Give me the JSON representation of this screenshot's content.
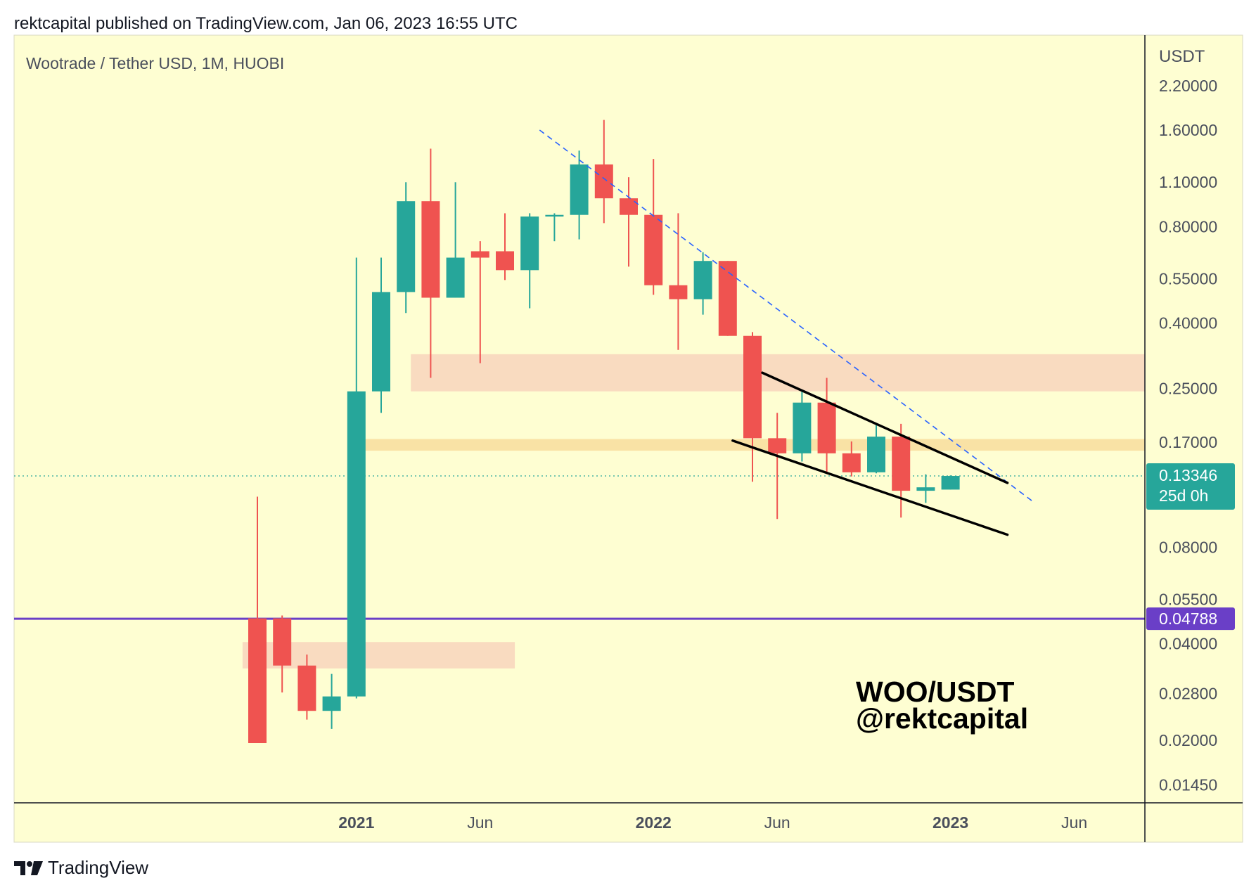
{
  "header": {
    "publisher_line": "rektcapital published on TradingView.com, Jan 06, 2023 16:55 UTC"
  },
  "footer": {
    "brand": "TradingView"
  },
  "colors": {
    "background": "#fefed2",
    "up": "#26a69a",
    "down": "#ef5350",
    "support_zone": "#f9dbc0",
    "support_line": "#f9e2a5",
    "horizontal_line": "#6a3fc7",
    "trend_dashed": "#2962ff",
    "wedge": "#000000"
  },
  "chart_data": {
    "type": "candlestick",
    "title": "Wootrade / Tether USD, 1M, HUOBI",
    "currency": "USDT",
    "scale": "log",
    "ylim": [
      0.0125,
      2.8
    ],
    "y_ticks": [
      "2.20000",
      "1.60000",
      "1.10000",
      "0.80000",
      "0.55000",
      "0.40000",
      "0.25000",
      "0.17000",
      "0.08000",
      "0.05500",
      "0.04000",
      "0.02800",
      "0.02000",
      "0.01450"
    ],
    "x_ticks": [
      {
        "label": "2021",
        "bold": true,
        "t": 4
      },
      {
        "label": "Jun",
        "bold": false,
        "t": 9
      },
      {
        "label": "2022",
        "bold": true,
        "t": 16
      },
      {
        "label": "Jun",
        "bold": false,
        "t": 21
      },
      {
        "label": "2023",
        "bold": true,
        "t": 28
      },
      {
        "label": "Jun",
        "bold": false,
        "t": 33
      }
    ],
    "candles": [
      {
        "date": "2020-09",
        "open": 0.048,
        "high": 0.115,
        "low": 0.0196,
        "close": 0.0196
      },
      {
        "date": "2020-10",
        "open": 0.048,
        "high": 0.049,
        "low": 0.0282,
        "close": 0.0342
      },
      {
        "date": "2020-11",
        "open": 0.0342,
        "high": 0.037,
        "low": 0.0232,
        "close": 0.0247
      },
      {
        "date": "2020-12",
        "open": 0.0247,
        "high": 0.0322,
        "low": 0.0217,
        "close": 0.0274
      },
      {
        "date": "2021-01",
        "open": 0.0274,
        "high": 0.64,
        "low": 0.027,
        "close": 0.245
      },
      {
        "date": "2021-02",
        "open": 0.245,
        "high": 0.64,
        "low": 0.21,
        "close": 0.5
      },
      {
        "date": "2021-03",
        "open": 0.5,
        "high": 1.1,
        "low": 0.43,
        "close": 0.96
      },
      {
        "date": "2021-04",
        "open": 0.96,
        "high": 1.4,
        "low": 0.27,
        "close": 0.48
      },
      {
        "date": "2021-05",
        "open": 0.48,
        "high": 1.1,
        "low": 0.48,
        "close": 0.64
      },
      {
        "date": "2021-06",
        "open": 0.67,
        "high": 0.72,
        "low": 0.3,
        "close": 0.64
      },
      {
        "date": "2021-07",
        "open": 0.67,
        "high": 0.88,
        "low": 0.545,
        "close": 0.585
      },
      {
        "date": "2021-08",
        "open": 0.585,
        "high": 0.88,
        "low": 0.445,
        "close": 0.86
      },
      {
        "date": "2021-09",
        "open": 0.86,
        "high": 0.88,
        "low": 0.72,
        "close": 0.87
      },
      {
        "date": "2021-10",
        "open": 0.87,
        "high": 1.38,
        "low": 0.73,
        "close": 1.25
      },
      {
        "date": "2021-11",
        "open": 1.25,
        "high": 1.72,
        "low": 0.82,
        "close": 0.98
      },
      {
        "date": "2021-12",
        "open": 0.98,
        "high": 1.14,
        "low": 0.6,
        "close": 0.87
      },
      {
        "date": "2022-01",
        "open": 0.87,
        "high": 1.3,
        "low": 0.49,
        "close": 0.525
      },
      {
        "date": "2022-02",
        "open": 0.525,
        "high": 0.88,
        "low": 0.33,
        "close": 0.475
      },
      {
        "date": "2022-03",
        "open": 0.475,
        "high": 0.665,
        "low": 0.425,
        "close": 0.625
      },
      {
        "date": "2022-04",
        "open": 0.625,
        "high": 0.625,
        "low": 0.365,
        "close": 0.365
      },
      {
        "date": "2022-05",
        "open": 0.365,
        "high": 0.375,
        "low": 0.128,
        "close": 0.175
      },
      {
        "date": "2022-06",
        "open": 0.175,
        "high": 0.21,
        "low": 0.098,
        "close": 0.157
      },
      {
        "date": "2022-07",
        "open": 0.157,
        "high": 0.244,
        "low": 0.148,
        "close": 0.226
      },
      {
        "date": "2022-08",
        "open": 0.226,
        "high": 0.27,
        "low": 0.137,
        "close": 0.157
      },
      {
        "date": "2022-09",
        "open": 0.157,
        "high": 0.171,
        "low": 0.133,
        "close": 0.137
      },
      {
        "date": "2022-10",
        "open": 0.137,
        "high": 0.194,
        "low": 0.136,
        "close": 0.177
      },
      {
        "date": "2022-11",
        "open": 0.177,
        "high": 0.194,
        "low": 0.099,
        "close": 0.12
      },
      {
        "date": "2022-12",
        "open": 0.12,
        "high": 0.135,
        "low": 0.11,
        "close": 0.123
      },
      {
        "date": "2023-01",
        "open": 0.121,
        "high": 0.134,
        "low": 0.121,
        "close": 0.13346
      }
    ],
    "zones": [
      {
        "name": "support-zone-upper",
        "low": 0.245,
        "high": 0.32,
        "t_start": 6.2,
        "t_end": 37.3
      },
      {
        "name": "support-line-zone",
        "low": 0.16,
        "high": 0.174,
        "t_start": 4.2,
        "t_end": 37.3
      },
      {
        "name": "support-zone-lower",
        "low": 0.0335,
        "high": 0.0405,
        "t_start": -0.6,
        "t_end": 10.4
      }
    ],
    "horizontal_line": {
      "value": 0.04788,
      "label": "0.04788"
    },
    "last_price": {
      "value": 0.13346,
      "label": "0.13346",
      "countdown": "25d 0h"
    },
    "trendlines": [
      {
        "name": "dashed-downtrend-line",
        "style": "dashed",
        "from": {
          "t": 11.4,
          "v": 1.6
        },
        "to": {
          "t": 31.4,
          "v": 0.11
        }
      },
      {
        "name": "wedge-upper-line",
        "style": "solid",
        "from": {
          "t": 20.4,
          "v": 0.28
        },
        "to": {
          "t": 30.3,
          "v": 0.127
        }
      },
      {
        "name": "wedge-lower-line",
        "style": "solid",
        "from": {
          "t": 19.2,
          "v": 0.172
        },
        "to": {
          "t": 30.3,
          "v": 0.0875
        }
      }
    ],
    "annotation": {
      "line1": "WOO/USDT",
      "line2": "@rektcapital"
    }
  }
}
